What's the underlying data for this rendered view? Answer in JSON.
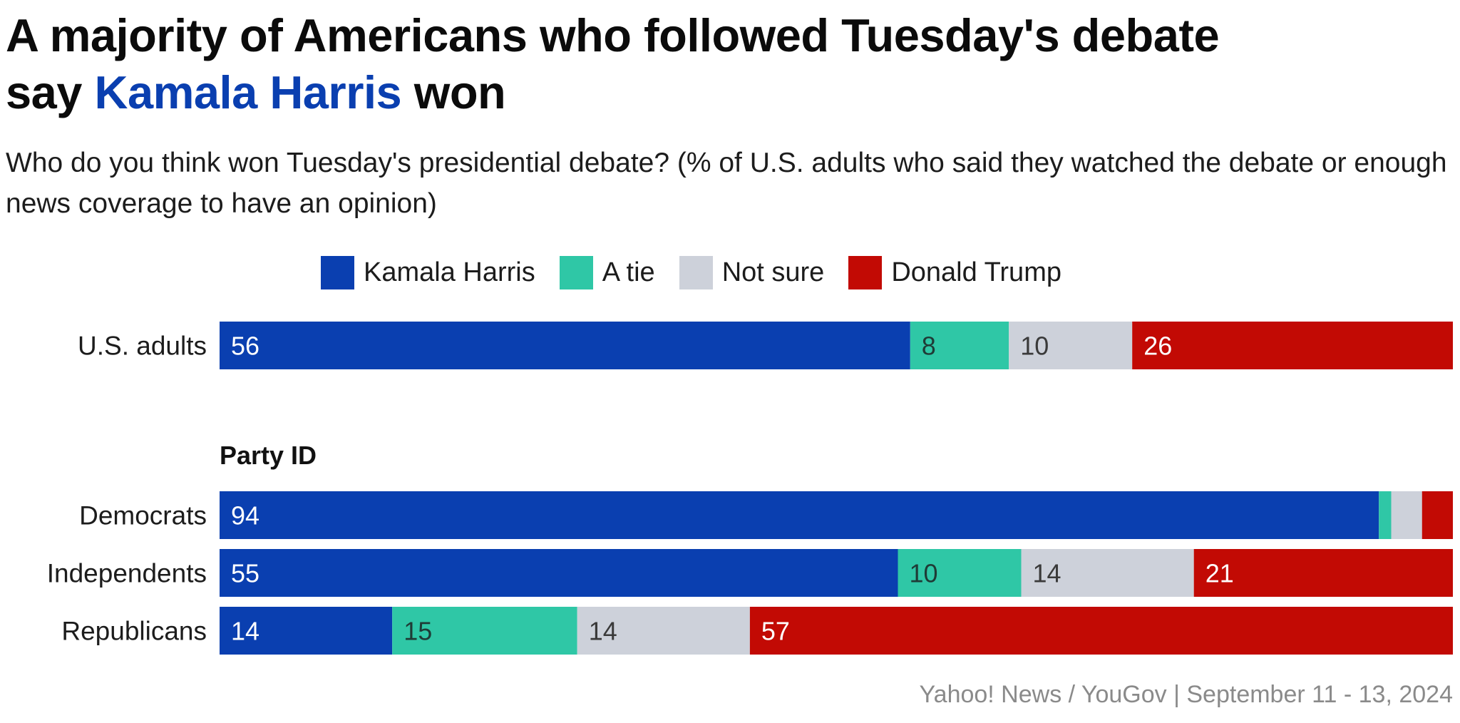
{
  "title": {
    "line1": "A majority of Americans who followed Tuesday's debate",
    "line2_prefix": "say",
    "highlight": "Kamala Harris",
    "line2_suffix": "won",
    "highlight_color": "#0a3fb0"
  },
  "subtitle": "Who do you think won Tuesday's presidential debate? (% of U.S. adults who said they watched the debate or enough news coverage to have an opinion)",
  "legend": [
    {
      "label": "Kamala Harris",
      "color": "#0a3fb0"
    },
    {
      "label": "A tie",
      "color": "#2fc7a6"
    },
    {
      "label": "Not sure",
      "color": "#cdd1da"
    },
    {
      "label": "Donald Trump",
      "color": "#c20a04"
    }
  ],
  "source": "Yahoo! News / YouGov | September 11 - 13, 2024",
  "chart_data": {
    "type": "bar",
    "orientation": "horizontal",
    "stacked": true,
    "unit": "%",
    "groups": [
      {
        "heading": "",
        "categories": [
          "U.S. adults"
        ]
      },
      {
        "heading": "Party ID",
        "categories": [
          "Democrats",
          "Independents",
          "Republicans"
        ]
      }
    ],
    "series": [
      {
        "name": "Kamala Harris",
        "color": "#0a3fb0",
        "values": [
          56,
          94,
          55,
          14
        ]
      },
      {
        "name": "A tie",
        "color": "#2fc7a6",
        "values": [
          8,
          1,
          10,
          15
        ]
      },
      {
        "name": "Not sure",
        "color": "#cdd1da",
        "values": [
          10,
          2.5,
          14,
          14
        ]
      },
      {
        "name": "Donald Trump",
        "color": "#c20a04",
        "values": [
          26,
          2.5,
          21,
          57
        ]
      }
    ],
    "data_labels": [
      [
        "56",
        "8",
        "10",
        "26"
      ],
      [
        "94",
        "",
        "",
        ""
      ],
      [
        "55",
        "10",
        "14",
        "21"
      ],
      [
        "14",
        "15",
        "14",
        "57"
      ]
    ],
    "label_colors": [
      "#ffffff",
      "#1f3b36",
      "#3a3a3a",
      "#ffffff"
    ],
    "xlim": [
      0,
      100
    ],
    "legend_position": "top-center",
    "grid": false
  }
}
